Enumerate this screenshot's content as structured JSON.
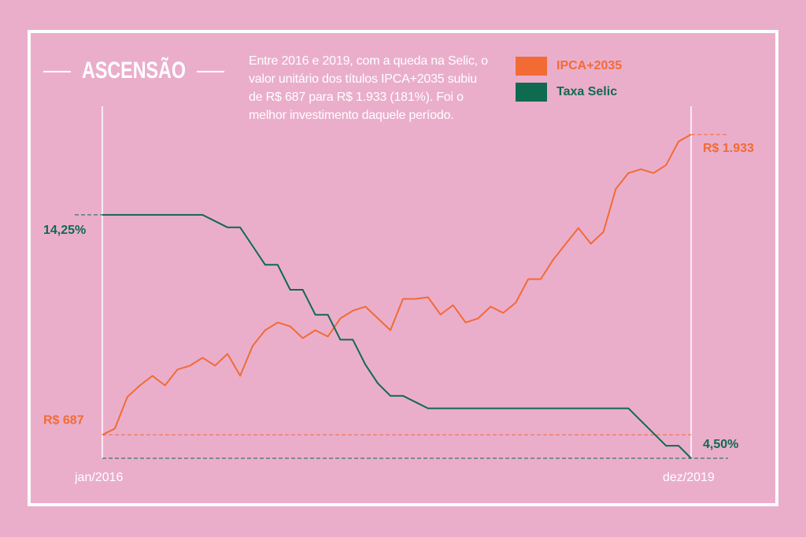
{
  "chart_data": {
    "type": "line",
    "title": "ASCENSÃO",
    "subtitle": "Entre 2016 e 2019, com a queda na Selic, o valor unitário dos títulos IPCA+2035 subiu de R$ 687 para R$ 1.933 (181%). Foi o melhor investimento daquele período.",
    "categories": [
      "jan/2016",
      null,
      null,
      null,
      null,
      null,
      null,
      null,
      null,
      null,
      null,
      null,
      null,
      null,
      null,
      null,
      null,
      null,
      null,
      null,
      null,
      null,
      null,
      null,
      null,
      null,
      null,
      null,
      null,
      null,
      null,
      null,
      null,
      null,
      null,
      null,
      null,
      null,
      null,
      null,
      null,
      null,
      null,
      null,
      null,
      null,
      null,
      "dez/2019"
    ],
    "ylim": [
      590,
      2050
    ],
    "y2lim": [
      4.5,
      18.6
    ],
    "series": [
      {
        "name": "IPCA+2035",
        "color": "#f26b35",
        "values": [
          687,
          713,
          844,
          892,
          932,
          892,
          958,
          974,
          1007,
          974,
          1023,
          932,
          1056,
          1121,
          1153,
          1137,
          1088,
          1121,
          1095,
          1170,
          1202,
          1219,
          1170,
          1121,
          1251,
          1251,
          1258,
          1186,
          1225,
          1153,
          1170,
          1219,
          1193,
          1235,
          1333,
          1333,
          1414,
          1480,
          1545,
          1480,
          1529,
          1708,
          1773,
          1789,
          1773,
          1806,
          1904,
          1933
        ],
        "value_labels": [
          "R$ 687",
          null,
          null,
          null,
          null,
          null,
          null,
          null,
          null,
          null,
          null,
          null,
          null,
          null,
          null,
          null,
          null,
          null,
          null,
          null,
          null,
          null,
          null,
          null,
          null,
          null,
          null,
          null,
          null,
          null,
          null,
          null,
          null,
          null,
          null,
          null,
          null,
          null,
          null,
          null,
          null,
          null,
          null,
          null,
          null,
          null,
          null,
          "R$ 1.933"
        ]
      },
      {
        "name": "Taxa Selic",
        "color": "#0f6a4f",
        "axis": "y2",
        "values": [
          14.25,
          14.25,
          14.25,
          14.25,
          14.25,
          14.25,
          14.25,
          14.25,
          14.25,
          14.0,
          13.75,
          13.75,
          13.0,
          12.25,
          12.25,
          11.25,
          11.25,
          10.25,
          10.25,
          9.25,
          9.25,
          8.25,
          7.5,
          7.0,
          7.0,
          6.75,
          6.5,
          6.5,
          6.5,
          6.5,
          6.5,
          6.5,
          6.5,
          6.5,
          6.5,
          6.5,
          6.5,
          6.5,
          6.5,
          6.5,
          6.5,
          6.5,
          6.5,
          6.0,
          5.5,
          5.0,
          5.0,
          4.5
        ],
        "value_labels": [
          "14,25%",
          null,
          null,
          null,
          null,
          null,
          null,
          null,
          null,
          null,
          null,
          null,
          null,
          null,
          null,
          null,
          null,
          null,
          null,
          null,
          null,
          null,
          null,
          null,
          null,
          null,
          null,
          null,
          null,
          null,
          null,
          null,
          null,
          null,
          null,
          null,
          null,
          null,
          null,
          null,
          null,
          null,
          null,
          null,
          null,
          null,
          null,
          "4,50%"
        ]
      }
    ]
  }
}
